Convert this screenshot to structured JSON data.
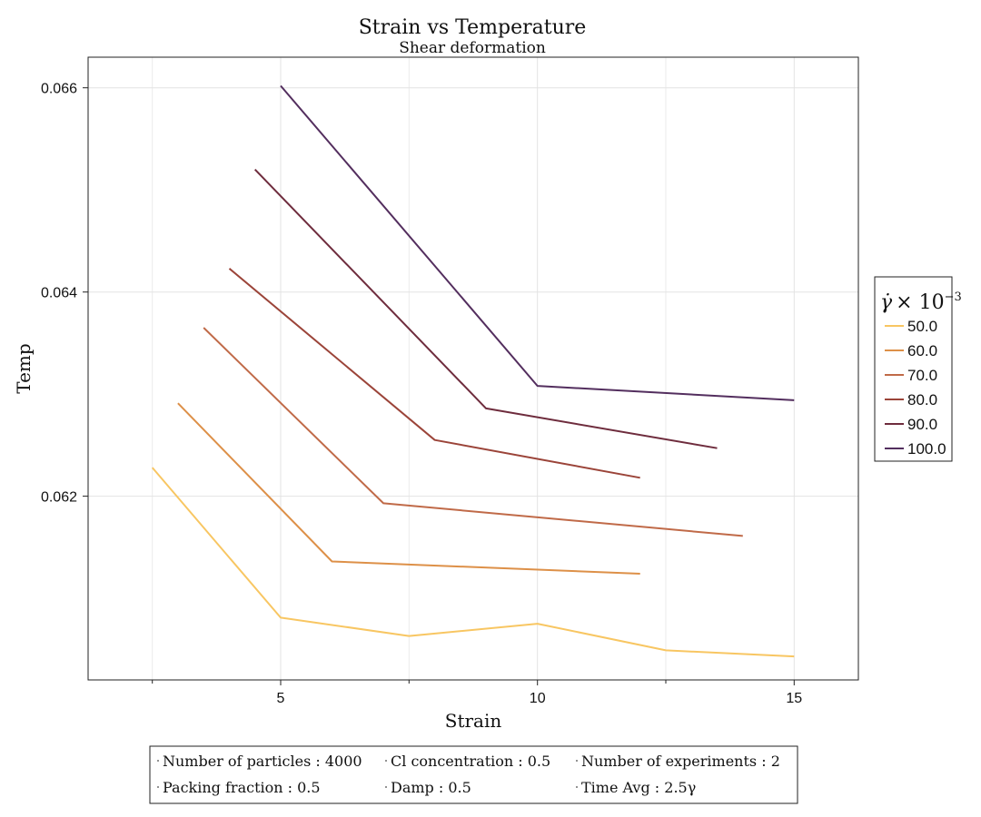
{
  "chart_data": {
    "type": "line",
    "title": "Strain vs Temperature",
    "subtitle": "Shear deformation",
    "xlabel": "Strain",
    "ylabel": "Temp",
    "xlim": [
      1.25,
      16.25
    ],
    "ylim": [
      0.0602,
      0.0663
    ],
    "xticks": [
      5,
      10,
      15
    ],
    "xtick_labels": [
      "5",
      "10",
      "15"
    ],
    "xminor_ticks": [
      2.5,
      7.5,
      12.5
    ],
    "yticks": [
      0.062,
      0.064,
      0.066
    ],
    "ytick_labels": [
      "0.062",
      "0.064",
      "0.066"
    ],
    "grid": true,
    "legend": {
      "title_symbol": "γ̇",
      "title_rest": "× 10",
      "title_sup": "−3",
      "position": "right"
    },
    "series": [
      {
        "name": "50.0",
        "color": "#f8c662",
        "x": [
          2.5,
          5,
          7.5,
          10,
          12.5,
          15
        ],
        "y": [
          0.06228,
          0.06081,
          0.06063,
          0.06075,
          0.06049,
          0.06043
        ]
      },
      {
        "name": "60.0",
        "color": "#dd9048",
        "x": [
          3,
          6,
          12
        ],
        "y": [
          0.06291,
          0.06136,
          0.06124
        ]
      },
      {
        "name": "70.0",
        "color": "#c06a48",
        "x": [
          3.5,
          7,
          14
        ],
        "y": [
          0.06365,
          0.06193,
          0.06161
        ]
      },
      {
        "name": "80.0",
        "color": "#9b4439",
        "x": [
          4,
          8,
          12
        ],
        "y": [
          0.06423,
          0.06255,
          0.06218
        ]
      },
      {
        "name": "90.0",
        "color": "#6e2c3d",
        "x": [
          4.5,
          9,
          13.5
        ],
        "y": [
          0.0652,
          0.06286,
          0.06247
        ]
      },
      {
        "name": "100.0",
        "color": "#532e5e",
        "x": [
          5,
          10,
          15
        ],
        "y": [
          0.06602,
          0.06308,
          0.06294
        ]
      }
    ]
  },
  "info_box": {
    "rows": [
      [
        {
          "label": "Number of particles",
          "value": "4000"
        },
        {
          "label": "Cl concentration",
          "value": "0.5"
        },
        {
          "label": "Number of experiments",
          "value": "2"
        }
      ],
      [
        {
          "label": "Packing fraction",
          "value": "0.5"
        },
        {
          "label": "Damp",
          "value": "0.5"
        },
        {
          "label": "Time Avg",
          "value": "2.5γ"
        }
      ]
    ]
  }
}
